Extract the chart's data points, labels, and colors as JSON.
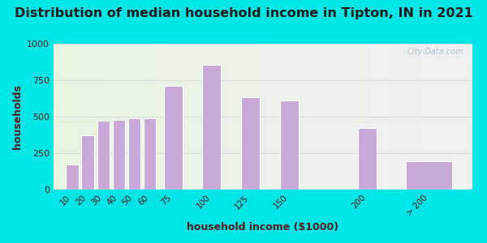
{
  "title": "Distribution of median household income in Tipton, IN in 2021",
  "xlabel": "household income ($1000)",
  "ylabel": "households",
  "categories": [
    "10",
    "20",
    "30",
    "40",
    "50",
    "60",
    "75",
    "100",
    "125",
    "150",
    "200",
    "> 200"
  ],
  "values": [
    175,
    375,
    470,
    480,
    490,
    490,
    710,
    855,
    635,
    610,
    420,
    195
  ],
  "x_positions": [
    10,
    20,
    30,
    40,
    50,
    60,
    75,
    100,
    125,
    150,
    200,
    240
  ],
  "bar_widths": [
    8,
    8,
    8,
    8,
    8,
    8,
    12,
    12,
    12,
    12,
    12,
    30
  ],
  "bar_color": "#c8a8d8",
  "bar_edge_color": "#ffffff",
  "ylim": [
    0,
    1000
  ],
  "yticks": [
    0,
    250,
    500,
    750,
    1000
  ],
  "xlim": [
    -2,
    268
  ],
  "bg_outer": "#00e5e5",
  "title_color": "#1a1a1a",
  "title_fontsize": 11.5,
  "axis_label_color": "#5a1a1a",
  "axis_label_fontsize": 9,
  "tick_label_color": "#5a1a1a",
  "watermark_text": "City-Data.com",
  "watermark_color": "#a0bcc8",
  "grid_color": "#d8d8d8"
}
